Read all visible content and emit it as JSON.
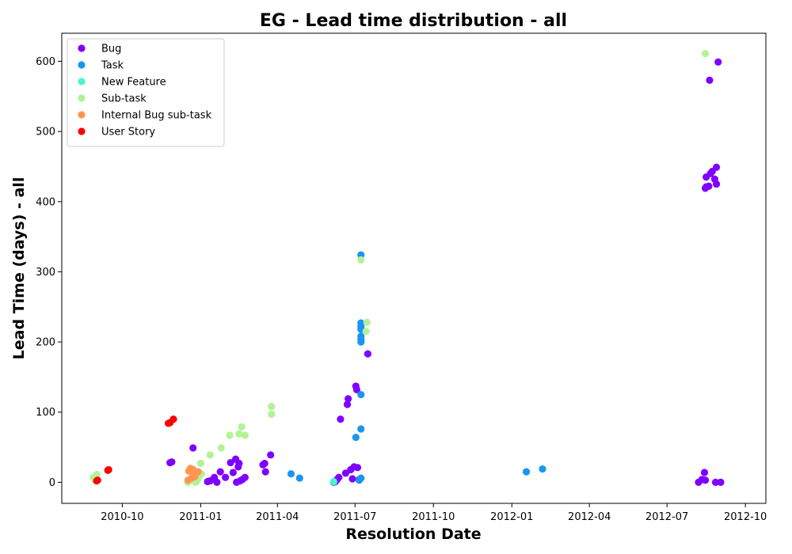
{
  "chart_data": {
    "type": "scatter",
    "title": "EG - Lead time distribution - all",
    "xlabel": "Resolution Date",
    "ylabel": "Lead Time (days) - all",
    "x_is_date": true,
    "xlim": [
      "2010-07-22",
      "2012-10-25"
    ],
    "ylim": [
      -30,
      640
    ],
    "yticks": [
      0,
      100,
      200,
      300,
      400,
      500,
      600
    ],
    "xticks": [
      {
        "date": "2010-10-01",
        "label": "2010-10"
      },
      {
        "date": "2011-01-01",
        "label": "2011-01"
      },
      {
        "date": "2011-04-01",
        "label": "2011-04"
      },
      {
        "date": "2011-07-01",
        "label": "2011-07"
      },
      {
        "date": "2011-10-01",
        "label": "2011-10"
      },
      {
        "date": "2012-01-01",
        "label": "2012-01"
      },
      {
        "date": "2012-04-01",
        "label": "2012-04"
      },
      {
        "date": "2012-07-01",
        "label": "2012-07"
      },
      {
        "date": "2012-10-01",
        "label": "2012-10"
      }
    ],
    "grid": false,
    "legend_position": "top-left",
    "series": [
      {
        "name": "Bug",
        "color": "#8000ff",
        "points": [
          [
            "2010-11-26",
            28
          ],
          [
            "2010-11-28",
            29
          ],
          [
            "2010-12-23",
            49
          ],
          [
            "2011-01-09",
            1
          ],
          [
            "2011-01-12",
            2
          ],
          [
            "2011-01-17",
            7
          ],
          [
            "2011-01-20",
            0
          ],
          [
            "2011-01-24",
            15
          ],
          [
            "2011-01-30",
            7
          ],
          [
            "2011-02-05",
            28
          ],
          [
            "2011-02-08",
            14
          ],
          [
            "2011-02-11",
            33
          ],
          [
            "2011-02-14",
            22
          ],
          [
            "2011-02-15",
            27
          ],
          [
            "2011-02-12",
            0
          ],
          [
            "2011-02-16",
            2
          ],
          [
            "2011-02-19",
            4
          ],
          [
            "2011-02-22",
            7
          ],
          [
            "2011-03-15",
            25
          ],
          [
            "2011-03-17",
            27
          ],
          [
            "2011-03-18",
            15
          ],
          [
            "2011-03-24",
            39
          ],
          [
            "2011-06-06",
            0
          ],
          [
            "2011-06-08",
            1
          ],
          [
            "2011-06-10",
            4
          ],
          [
            "2011-06-12",
            7
          ],
          [
            "2011-06-14",
            90
          ],
          [
            "2011-06-20",
            13
          ],
          [
            "2011-06-22",
            111
          ],
          [
            "2011-06-23",
            119
          ],
          [
            "2011-06-26",
            18
          ],
          [
            "2011-06-28",
            5
          ],
          [
            "2011-06-30",
            22
          ],
          [
            "2011-07-02",
            137
          ],
          [
            "2011-07-03",
            132
          ],
          [
            "2011-07-04",
            21
          ],
          [
            "2011-07-06",
            4
          ],
          [
            "2011-07-16",
            183
          ],
          [
            "2012-08-07",
            0
          ],
          [
            "2012-08-11",
            4
          ],
          [
            "2012-08-14",
            14
          ],
          [
            "2012-08-15",
            3
          ],
          [
            "2012-08-15",
            419
          ],
          [
            "2012-08-16",
            421
          ],
          [
            "2012-08-16",
            435
          ],
          [
            "2012-08-19",
            422
          ],
          [
            "2012-08-20",
            573
          ],
          [
            "2012-08-21",
            440
          ],
          [
            "2012-08-23",
            443
          ],
          [
            "2012-08-26",
            432
          ],
          [
            "2012-08-27",
            0
          ],
          [
            "2012-08-28",
            425
          ],
          [
            "2012-08-28",
            449
          ],
          [
            "2012-08-30",
            599
          ],
          [
            "2012-09-02",
            0
          ]
        ]
      },
      {
        "name": "Task",
        "color": "#1996f3",
        "points": [
          [
            "2011-04-17",
            12
          ],
          [
            "2011-04-27",
            6
          ],
          [
            "2011-06-06",
            0
          ],
          [
            "2011-07-02",
            64
          ],
          [
            "2011-07-06",
            3
          ],
          [
            "2011-07-08",
            6
          ],
          [
            "2011-07-08",
            76
          ],
          [
            "2011-07-08",
            125
          ],
          [
            "2011-07-08",
            200
          ],
          [
            "2011-07-08",
            204
          ],
          [
            "2011-07-08",
            208
          ],
          [
            "2011-07-08",
            218
          ],
          [
            "2011-07-08",
            222
          ],
          [
            "2011-07-08",
            227
          ],
          [
            "2011-07-08",
            324
          ],
          [
            "2012-01-18",
            15
          ],
          [
            "2012-02-06",
            19
          ]
        ]
      },
      {
        "name": "New Feature",
        "color": "#4df3ce",
        "points": [
          [
            "2011-06-06",
            1
          ]
        ]
      },
      {
        "name": "Sub-task",
        "color": "#b2f396",
        "points": [
          [
            "2010-08-28",
            7
          ],
          [
            "2010-08-30",
            3
          ],
          [
            "2010-09-01",
            11
          ],
          [
            "2010-12-17",
            0
          ],
          [
            "2010-12-19",
            2
          ],
          [
            "2010-12-21",
            4
          ],
          [
            "2010-12-24",
            7
          ],
          [
            "2010-12-26",
            0
          ],
          [
            "2010-12-28",
            3
          ],
          [
            "2010-12-30",
            8
          ],
          [
            "2011-01-02",
            12
          ],
          [
            "2011-01-01",
            27
          ],
          [
            "2011-01-12",
            39
          ],
          [
            "2011-01-25",
            49
          ],
          [
            "2011-02-04",
            67
          ],
          [
            "2011-02-15",
            69
          ],
          [
            "2011-02-18",
            79
          ],
          [
            "2011-02-22",
            67
          ],
          [
            "2011-03-25",
            97
          ],
          [
            "2011-03-25",
            108
          ],
          [
            "2011-07-08",
            317
          ],
          [
            "2011-07-14",
            215
          ],
          [
            "2011-07-15",
            228
          ],
          [
            "2012-08-15",
            611
          ]
        ]
      },
      {
        "name": "Internal Bug sub-task",
        "color": "#ff964f",
        "points": [
          [
            "2010-12-17",
            3
          ],
          [
            "2010-12-18",
            16
          ],
          [
            "2010-12-20",
            20
          ],
          [
            "2010-12-21",
            6
          ],
          [
            "2010-12-23",
            18
          ],
          [
            "2010-12-24",
            11
          ],
          [
            "2010-12-25",
            8
          ],
          [
            "2010-12-27",
            14
          ],
          [
            "2010-12-29",
            15
          ]
        ]
      },
      {
        "name": "User Story",
        "color": "#ff0000",
        "points": [
          [
            "2010-09-01",
            2
          ],
          [
            "2010-09-02",
            3
          ],
          [
            "2010-09-14",
            17
          ],
          [
            "2010-09-15",
            18
          ],
          [
            "2010-11-24",
            84
          ],
          [
            "2010-11-26",
            85
          ],
          [
            "2010-11-30",
            90
          ]
        ]
      }
    ]
  }
}
